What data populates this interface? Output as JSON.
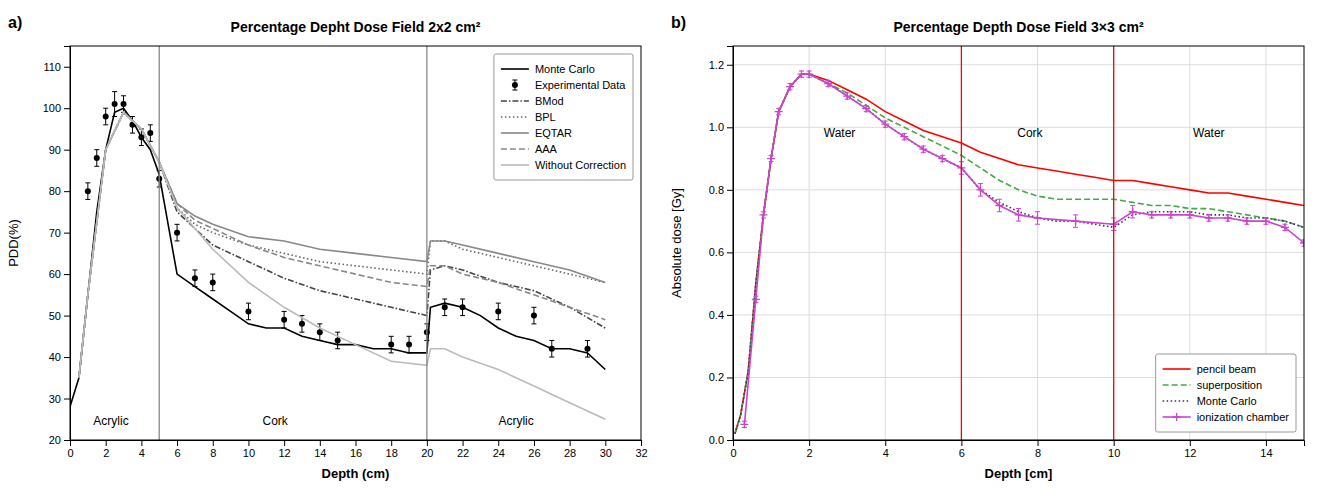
{
  "chart_data": [
    {
      "type": "line",
      "title": "Percentage Depht Dose Field 2x2 cm²",
      "panel_label": "a)",
      "x_label": "Depth (cm)",
      "y_label": "PDD(%)",
      "xlim": [
        0,
        32
      ],
      "ylim": [
        20,
        115
      ],
      "xticks": [
        0,
        2,
        4,
        6,
        8,
        10,
        12,
        14,
        16,
        18,
        20,
        22,
        24,
        26,
        28,
        30,
        32
      ],
      "yticks": [
        20,
        30,
        40,
        50,
        60,
        70,
        80,
        90,
        100,
        110
      ],
      "legend": "upper right",
      "vlines": {
        "values": [
          5.0,
          20.0
        ],
        "color": "#888888"
      },
      "annotations": [
        {
          "text": "Acrylic",
          "x": 2.3,
          "y": 23
        },
        {
          "text": "Cork",
          "x": 11.5,
          "y": 23
        },
        {
          "text": "Acrylic",
          "x": 25.0,
          "y": 23
        }
      ],
      "series": [
        {
          "name": "Monte Carlo",
          "type": "line",
          "color": "#000000",
          "line_style": "solid",
          "x": [
            0.0,
            0.5,
            1.0,
            1.5,
            2.0,
            2.5,
            3.0,
            3.5,
            4.0,
            4.5,
            5.0,
            5.5,
            6.0,
            7.0,
            8.0,
            9.0,
            10.0,
            11.0,
            12.0,
            13.0,
            14.0,
            15.0,
            16.0,
            17.0,
            18.0,
            19.0,
            20.0,
            20.2,
            21.0,
            22.0,
            23.0,
            24.0,
            25.0,
            26.0,
            27.0,
            28.0,
            29.0,
            30.0
          ],
          "values": [
            28,
            35,
            55,
            75,
            90,
            99,
            100,
            97,
            93,
            90,
            84,
            72,
            60,
            57,
            54,
            51,
            48,
            47,
            47,
            45,
            44,
            43,
            43,
            42,
            42,
            41,
            41,
            52,
            53,
            52,
            50,
            47,
            45,
            44,
            42,
            42,
            41,
            37
          ]
        },
        {
          "name": "Experimental Data",
          "type": "scatter",
          "marker": "circle",
          "color": "#000000",
          "x": [
            1.0,
            1.5,
            2.0,
            2.5,
            3.0,
            3.5,
            4.0,
            4.5,
            5.0,
            6.0,
            7.0,
            8.0,
            10.0,
            12.0,
            13.0,
            14.0,
            15.0,
            18.0,
            19.0,
            20.0,
            21.0,
            22.0,
            24.0,
            26.0,
            27.0,
            29.0
          ],
          "values": [
            80,
            88,
            98,
            101,
            101,
            96,
            93,
            94,
            83,
            70,
            59,
            58,
            51,
            49,
            48,
            46,
            44,
            43,
            43,
            46,
            52,
            52,
            51,
            50,
            42,
            42
          ],
          "errors": [
            2,
            2,
            2,
            3,
            2,
            2,
            2,
            2,
            2,
            2,
            2,
            2,
            2,
            2,
            2,
            2,
            2,
            2,
            2,
            2,
            2,
            2,
            2,
            2,
            2,
            2
          ]
        },
        {
          "name": "BMod",
          "type": "line",
          "color": "#444444",
          "line_style": "dashdot",
          "x": [
            0.5,
            1.0,
            2.0,
            3.0,
            4.0,
            5.0,
            6.0,
            7.0,
            8.0,
            10.0,
            12.0,
            14.0,
            16.0,
            18.0,
            20.0,
            20.2,
            21.0,
            22.0,
            24.0,
            26.0,
            28.0,
            30.0
          ],
          "values": [
            35,
            55,
            90,
            99,
            95,
            87,
            75,
            71,
            67,
            63,
            59,
            56,
            54,
            52,
            50,
            61,
            62,
            61,
            58,
            56,
            52,
            47
          ]
        },
        {
          "name": "BPL",
          "type": "line",
          "color": "#666666",
          "line_style": "dotted",
          "x": [
            0.5,
            1.0,
            2.0,
            3.0,
            4.0,
            5.0,
            6.0,
            7.0,
            8.0,
            10.0,
            12.0,
            14.0,
            16.0,
            18.0,
            20.0,
            20.2,
            21.0,
            22.0,
            24.0,
            26.0,
            28.0,
            30.0
          ],
          "values": [
            35,
            55,
            90,
            99,
            95,
            87,
            76,
            72,
            70,
            67,
            65,
            63,
            62,
            61,
            60,
            68,
            68,
            66,
            64,
            62,
            60,
            58
          ]
        },
        {
          "name": "EQTAR",
          "type": "line",
          "color": "#888888",
          "line_style": "solid",
          "x": [
            0.5,
            1.0,
            2.0,
            3.0,
            4.0,
            5.0,
            6.0,
            7.0,
            8.0,
            10.0,
            12.0,
            14.0,
            16.0,
            18.0,
            20.0,
            20.2,
            21.0,
            22.0,
            24.0,
            26.0,
            28.0,
            30.0
          ],
          "values": [
            35,
            55,
            90,
            99,
            95,
            87,
            77,
            74,
            72,
            69,
            68,
            66,
            65,
            64,
            63,
            68,
            68,
            67,
            65,
            63,
            61,
            58
          ]
        },
        {
          "name": "AAA",
          "type": "line",
          "color": "#888888",
          "line_style": "dashed",
          "x": [
            0.5,
            1.0,
            2.0,
            3.0,
            4.0,
            5.0,
            6.0,
            7.0,
            8.0,
            10.0,
            12.0,
            14.0,
            16.0,
            18.0,
            20.0,
            20.2,
            21.0,
            22.0,
            24.0,
            26.0,
            28.0,
            30.0
          ],
          "values": [
            35,
            55,
            90,
            99,
            95,
            87,
            77,
            73,
            71,
            67,
            64,
            62,
            60,
            58,
            57,
            62,
            62,
            60,
            58,
            55,
            52,
            49
          ]
        },
        {
          "name": "Without Correction",
          "type": "line",
          "color": "#bbbbbb",
          "line_style": "solid",
          "x": [
            0.5,
            1.0,
            2.0,
            3.0,
            4.0,
            5.0,
            6.0,
            8.0,
            10.0,
            12.0,
            14.0,
            16.0,
            18.0,
            20.0,
            20.2,
            21.0,
            22.0,
            24.0,
            26.0,
            28.0,
            30.0
          ],
          "values": [
            35,
            55,
            90,
            99,
            95,
            87,
            76,
            66,
            58,
            52,
            47,
            43,
            39,
            38,
            42,
            42,
            40,
            37,
            33,
            29,
            25
          ]
        }
      ]
    },
    {
      "type": "line",
      "title": "Percentage Depth Dose Field 3×3 cm²",
      "panel_label": "b)",
      "x_label": "Depth [cm]",
      "y_label": "Absolute dose [Gy]",
      "xlim": [
        0,
        15
      ],
      "ylim": [
        0,
        1.26
      ],
      "xticks": [
        0,
        2,
        4,
        6,
        8,
        10,
        12,
        14
      ],
      "yticks": [
        {
          "value": 0,
          "label": "0.0"
        },
        0.2,
        0.4,
        0.6,
        0.8,
        {
          "value": 1.0,
          "label": "1.0"
        },
        1.2
      ],
      "grid": true,
      "legend": "lower right",
      "vlines": {
        "values": [
          6.0,
          10.0
        ],
        "color": "#ff0000"
      },
      "annotations": [
        {
          "text": "Water",
          "x": 2.8,
          "y": 0.96
        },
        {
          "text": "Cork",
          "x": 7.8,
          "y": 0.96
        },
        {
          "text": "Water",
          "x": 12.5,
          "y": 0.96
        }
      ],
      "series": [
        {
          "name": "pencil beam",
          "type": "line",
          "color": "#ff0000",
          "line_style": "solid",
          "x": [
            0.05,
            0.2,
            0.4,
            0.6,
            0.8,
            1.0,
            1.2,
            1.5,
            1.8,
            2.0,
            2.5,
            3.0,
            3.5,
            4.0,
            4.5,
            5.0,
            5.5,
            6.0,
            6.5,
            7.0,
            7.5,
            8.0,
            8.5,
            9.0,
            9.5,
            10.0,
            10.5,
            11.0,
            11.5,
            12.0,
            12.5,
            13.0,
            13.5,
            14.0,
            14.5,
            15.0
          ],
          "values": [
            0.02,
            0.08,
            0.22,
            0.5,
            0.72,
            0.9,
            1.05,
            1.13,
            1.17,
            1.17,
            1.15,
            1.12,
            1.09,
            1.05,
            1.02,
            0.99,
            0.97,
            0.95,
            0.92,
            0.9,
            0.88,
            0.87,
            0.86,
            0.85,
            0.84,
            0.83,
            0.83,
            0.82,
            0.81,
            0.8,
            0.79,
            0.79,
            0.78,
            0.77,
            0.76,
            0.75
          ]
        },
        {
          "name": "superposition",
          "type": "line",
          "color": "#44aa44",
          "line_style": "dashed",
          "x": [
            0.05,
            0.2,
            0.4,
            0.6,
            0.8,
            1.0,
            1.2,
            1.5,
            1.8,
            2.0,
            2.5,
            3.0,
            3.5,
            4.0,
            4.5,
            5.0,
            5.5,
            6.0,
            6.5,
            7.0,
            7.5,
            8.0,
            8.5,
            9.0,
            9.5,
            10.0,
            10.5,
            11.0,
            11.5,
            12.0,
            12.5,
            13.0,
            13.5,
            14.0,
            14.5,
            15.0
          ],
          "values": [
            0.02,
            0.08,
            0.22,
            0.5,
            0.72,
            0.9,
            1.05,
            1.13,
            1.17,
            1.17,
            1.14,
            1.11,
            1.07,
            1.03,
            1.0,
            0.97,
            0.94,
            0.91,
            0.87,
            0.83,
            0.8,
            0.78,
            0.77,
            0.77,
            0.77,
            0.77,
            0.76,
            0.75,
            0.75,
            0.74,
            0.74,
            0.73,
            0.72,
            0.71,
            0.7,
            0.68
          ]
        },
        {
          "name": "Monte Carlo",
          "type": "line",
          "color": "#333366",
          "line_style": "dotted",
          "x": [
            0.05,
            0.2,
            0.4,
            0.6,
            0.8,
            1.0,
            1.2,
            1.5,
            1.8,
            2.0,
            2.5,
            3.0,
            3.5,
            4.0,
            4.5,
            5.0,
            5.5,
            6.0,
            6.5,
            7.0,
            7.5,
            8.0,
            8.5,
            9.0,
            9.5,
            10.0,
            10.5,
            11.0,
            11.5,
            12.0,
            12.5,
            13.0,
            13.5,
            14.0,
            14.5,
            15.0
          ],
          "values": [
            0.02,
            0.08,
            0.22,
            0.5,
            0.72,
            0.9,
            1.05,
            1.13,
            1.17,
            1.17,
            1.14,
            1.1,
            1.06,
            1.01,
            0.97,
            0.93,
            0.9,
            0.87,
            0.8,
            0.76,
            0.73,
            0.71,
            0.7,
            0.7,
            0.69,
            0.68,
            0.72,
            0.73,
            0.73,
            0.73,
            0.72,
            0.72,
            0.71,
            0.71,
            0.7,
            0.68
          ]
        },
        {
          "name": "ionization chamber",
          "type": "line",
          "marker": "plus",
          "color": "#cc44cc",
          "line_style": "solid",
          "x": [
            0.3,
            0.6,
            0.8,
            1.0,
            1.2,
            1.5,
            1.8,
            2.0,
            2.5,
            3.0,
            3.5,
            4.0,
            4.5,
            5.0,
            5.5,
            6.0,
            6.5,
            7.0,
            7.5,
            8.0,
            9.0,
            10.0,
            10.5,
            11.0,
            11.5,
            12.0,
            12.5,
            13.0,
            13.5,
            14.0,
            14.5,
            15.0
          ],
          "values": [
            0.05,
            0.45,
            0.72,
            0.9,
            1.05,
            1.13,
            1.17,
            1.17,
            1.14,
            1.1,
            1.06,
            1.01,
            0.97,
            0.93,
            0.9,
            0.87,
            0.8,
            0.75,
            0.72,
            0.71,
            0.7,
            0.69,
            0.73,
            0.72,
            0.72,
            0.72,
            0.71,
            0.71,
            0.7,
            0.7,
            0.68,
            0.63
          ],
          "errors": [
            0.01,
            0.01,
            0.01,
            0.01,
            0.01,
            0.01,
            0.01,
            0.01,
            0.01,
            0.01,
            0.01,
            0.01,
            0.01,
            0.01,
            0.01,
            0.02,
            0.02,
            0.02,
            0.02,
            0.02,
            0.02,
            0.02,
            0.02,
            0.01,
            0.01,
            0.01,
            0.01,
            0.01,
            0.01,
            0.01,
            0.01,
            0.01
          ]
        }
      ]
    }
  ]
}
